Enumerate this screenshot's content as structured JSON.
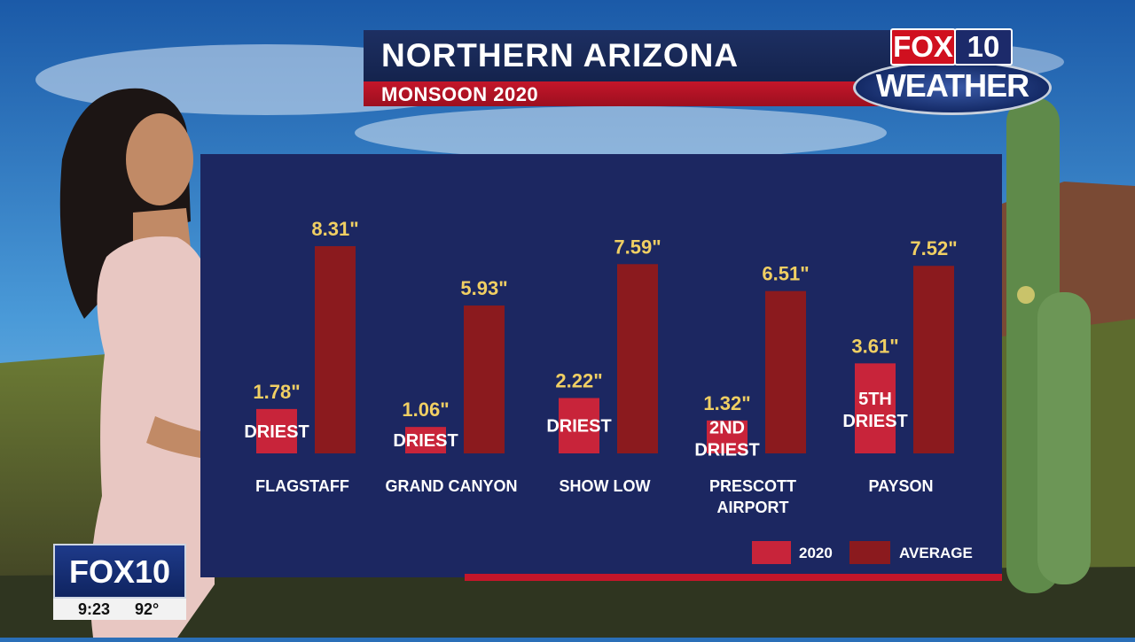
{
  "header": {
    "title": "NORTHERN ARIZONA",
    "subtitle": "MONSOON 2020"
  },
  "logo": {
    "fox": "FOX",
    "ten": "10",
    "weather": "WEATHER"
  },
  "bug": {
    "brand": "FOX10",
    "time": "9:23",
    "temp": "92°"
  },
  "colors": {
    "series_2020": "#c8243a",
    "series_average": "#8b1a1e",
    "panel": "#1c2761",
    "value_text": "#f0cf63"
  },
  "chart_data": {
    "type": "bar",
    "title": "NORTHERN ARIZONA",
    "subtitle": "MONSOON 2020",
    "categories": [
      "FLAGSTAFF",
      "GRAND CANYON",
      "SHOW LOW",
      "PRESCOTT AIRPORT",
      "PAYSON"
    ],
    "category_lines": [
      [
        "FLAGSTAFF"
      ],
      [
        "GRAND CANYON"
      ],
      [
        "SHOW LOW"
      ],
      [
        "PRESCOTT",
        "AIRPORT"
      ],
      [
        "PAYSON"
      ]
    ],
    "series": [
      {
        "name": "2020",
        "values": [
          1.78,
          1.06,
          2.22,
          1.32,
          3.61
        ],
        "value_labels": [
          "1.78\"",
          "1.06\"",
          "2.22\"",
          "1.32\"",
          "3.61\""
        ],
        "annotations": [
          [
            "DRIEST"
          ],
          [
            "DRIEST"
          ],
          [
            "DRIEST"
          ],
          [
            "2ND",
            "DRIEST"
          ],
          [
            "5TH",
            "DRIEST"
          ]
        ]
      },
      {
        "name": "AVERAGE",
        "values": [
          8.31,
          5.93,
          7.59,
          6.51,
          7.52
        ],
        "value_labels": [
          "8.31\"",
          "5.93\"",
          "7.59\"",
          "6.51\"",
          "7.52\""
        ]
      }
    ],
    "ylim": [
      0,
      8.31
    ],
    "grid": false,
    "legend": "bottom-right"
  }
}
